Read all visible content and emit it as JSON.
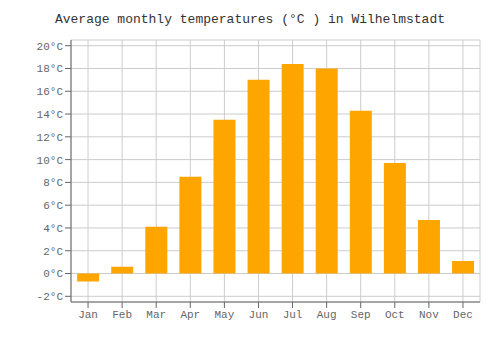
{
  "chart_data": {
    "type": "bar",
    "title": "Average monthly temperatures (°C ) in Wilhelmstadt",
    "categories": [
      "Jan",
      "Feb",
      "Mar",
      "Apr",
      "May",
      "Jun",
      "Jul",
      "Aug",
      "Sep",
      "Oct",
      "Nov",
      "Dec"
    ],
    "values": [
      -0.7,
      0.6,
      4.1,
      8.5,
      13.5,
      17.0,
      18.4,
      18.0,
      14.3,
      9.7,
      4.7,
      1.1
    ],
    "color": "#FFA500",
    "ylim": [
      -2.5,
      20.5
    ],
    "yticks": [
      {
        "value": -2,
        "label": "-2°C"
      },
      {
        "value": 0,
        "label": "0°C"
      },
      {
        "value": 2,
        "label": "2°C"
      },
      {
        "value": 4,
        "label": "4°C"
      },
      {
        "value": 6,
        "label": "6°C"
      },
      {
        "value": 8,
        "label": "8°C"
      },
      {
        "value": 10,
        "label": "10°C"
      },
      {
        "value": 12,
        "label": "12°C"
      },
      {
        "value": 14,
        "label": "14°C"
      },
      {
        "value": 16,
        "label": "16°C"
      },
      {
        "value": 18,
        "label": "18°C"
      },
      {
        "value": 20,
        "label": "20°C"
      }
    ],
    "grid": true
  }
}
